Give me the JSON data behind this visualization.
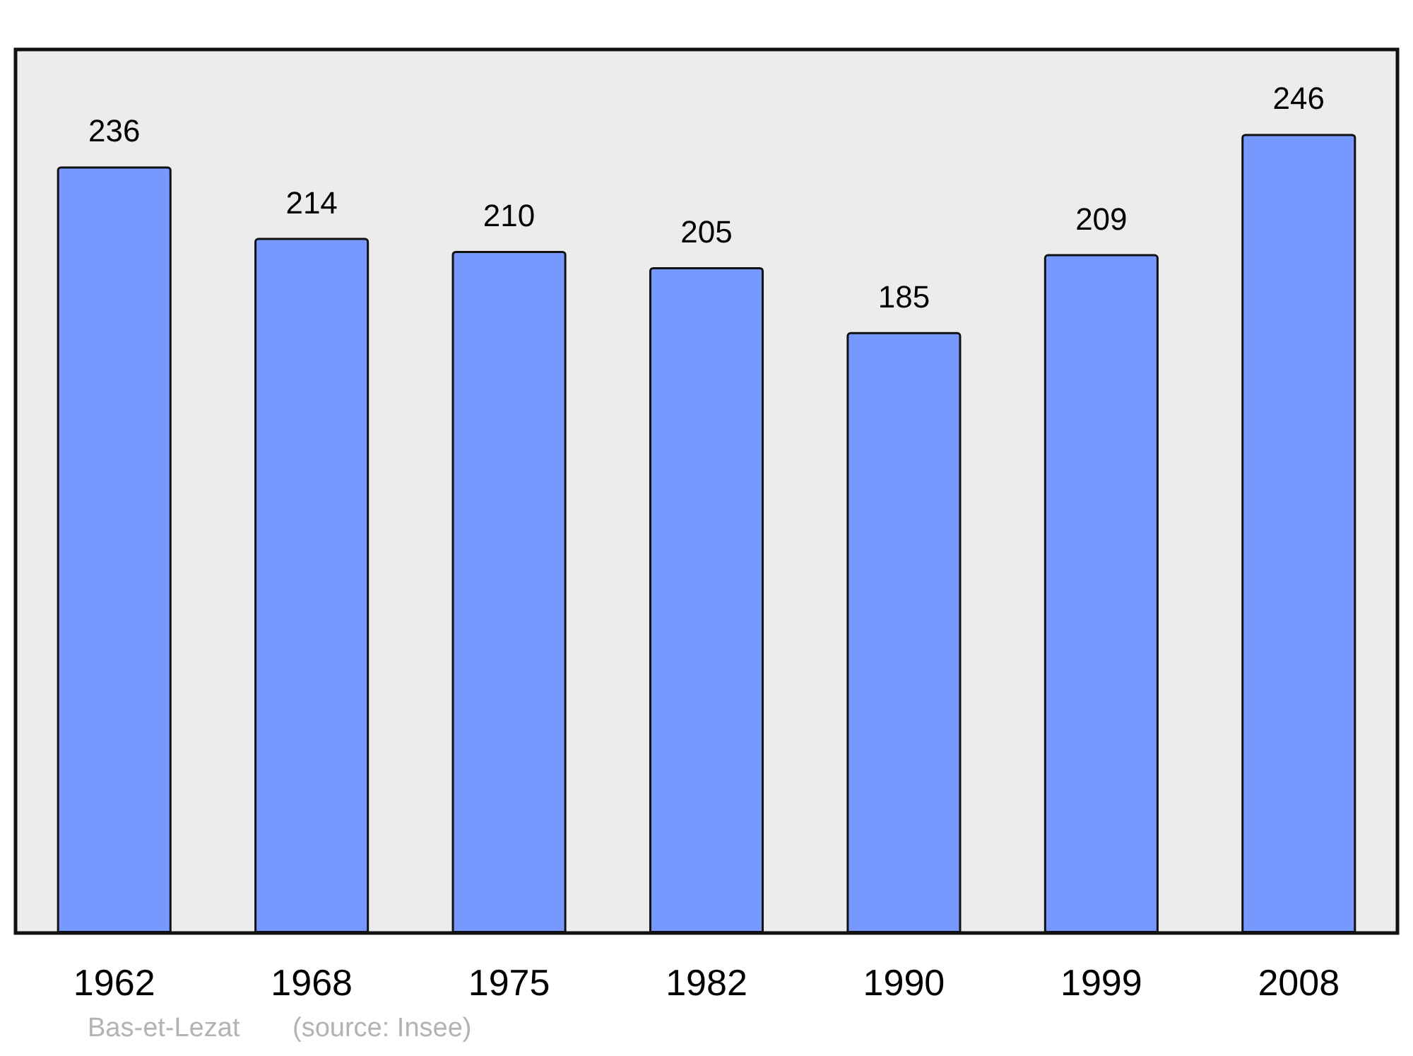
{
  "chart_data": {
    "type": "bar",
    "categories": [
      "1962",
      "1968",
      "1975",
      "1982",
      "1990",
      "1999",
      "2008"
    ],
    "values": [
      236,
      214,
      210,
      205,
      185,
      209,
      246
    ],
    "color": "#7799ff",
    "ylim": [
      0,
      272
    ],
    "data_labels": true,
    "annotations": [
      "Bas-et-Lezat",
      "(source: Insee)"
    ]
  }
}
